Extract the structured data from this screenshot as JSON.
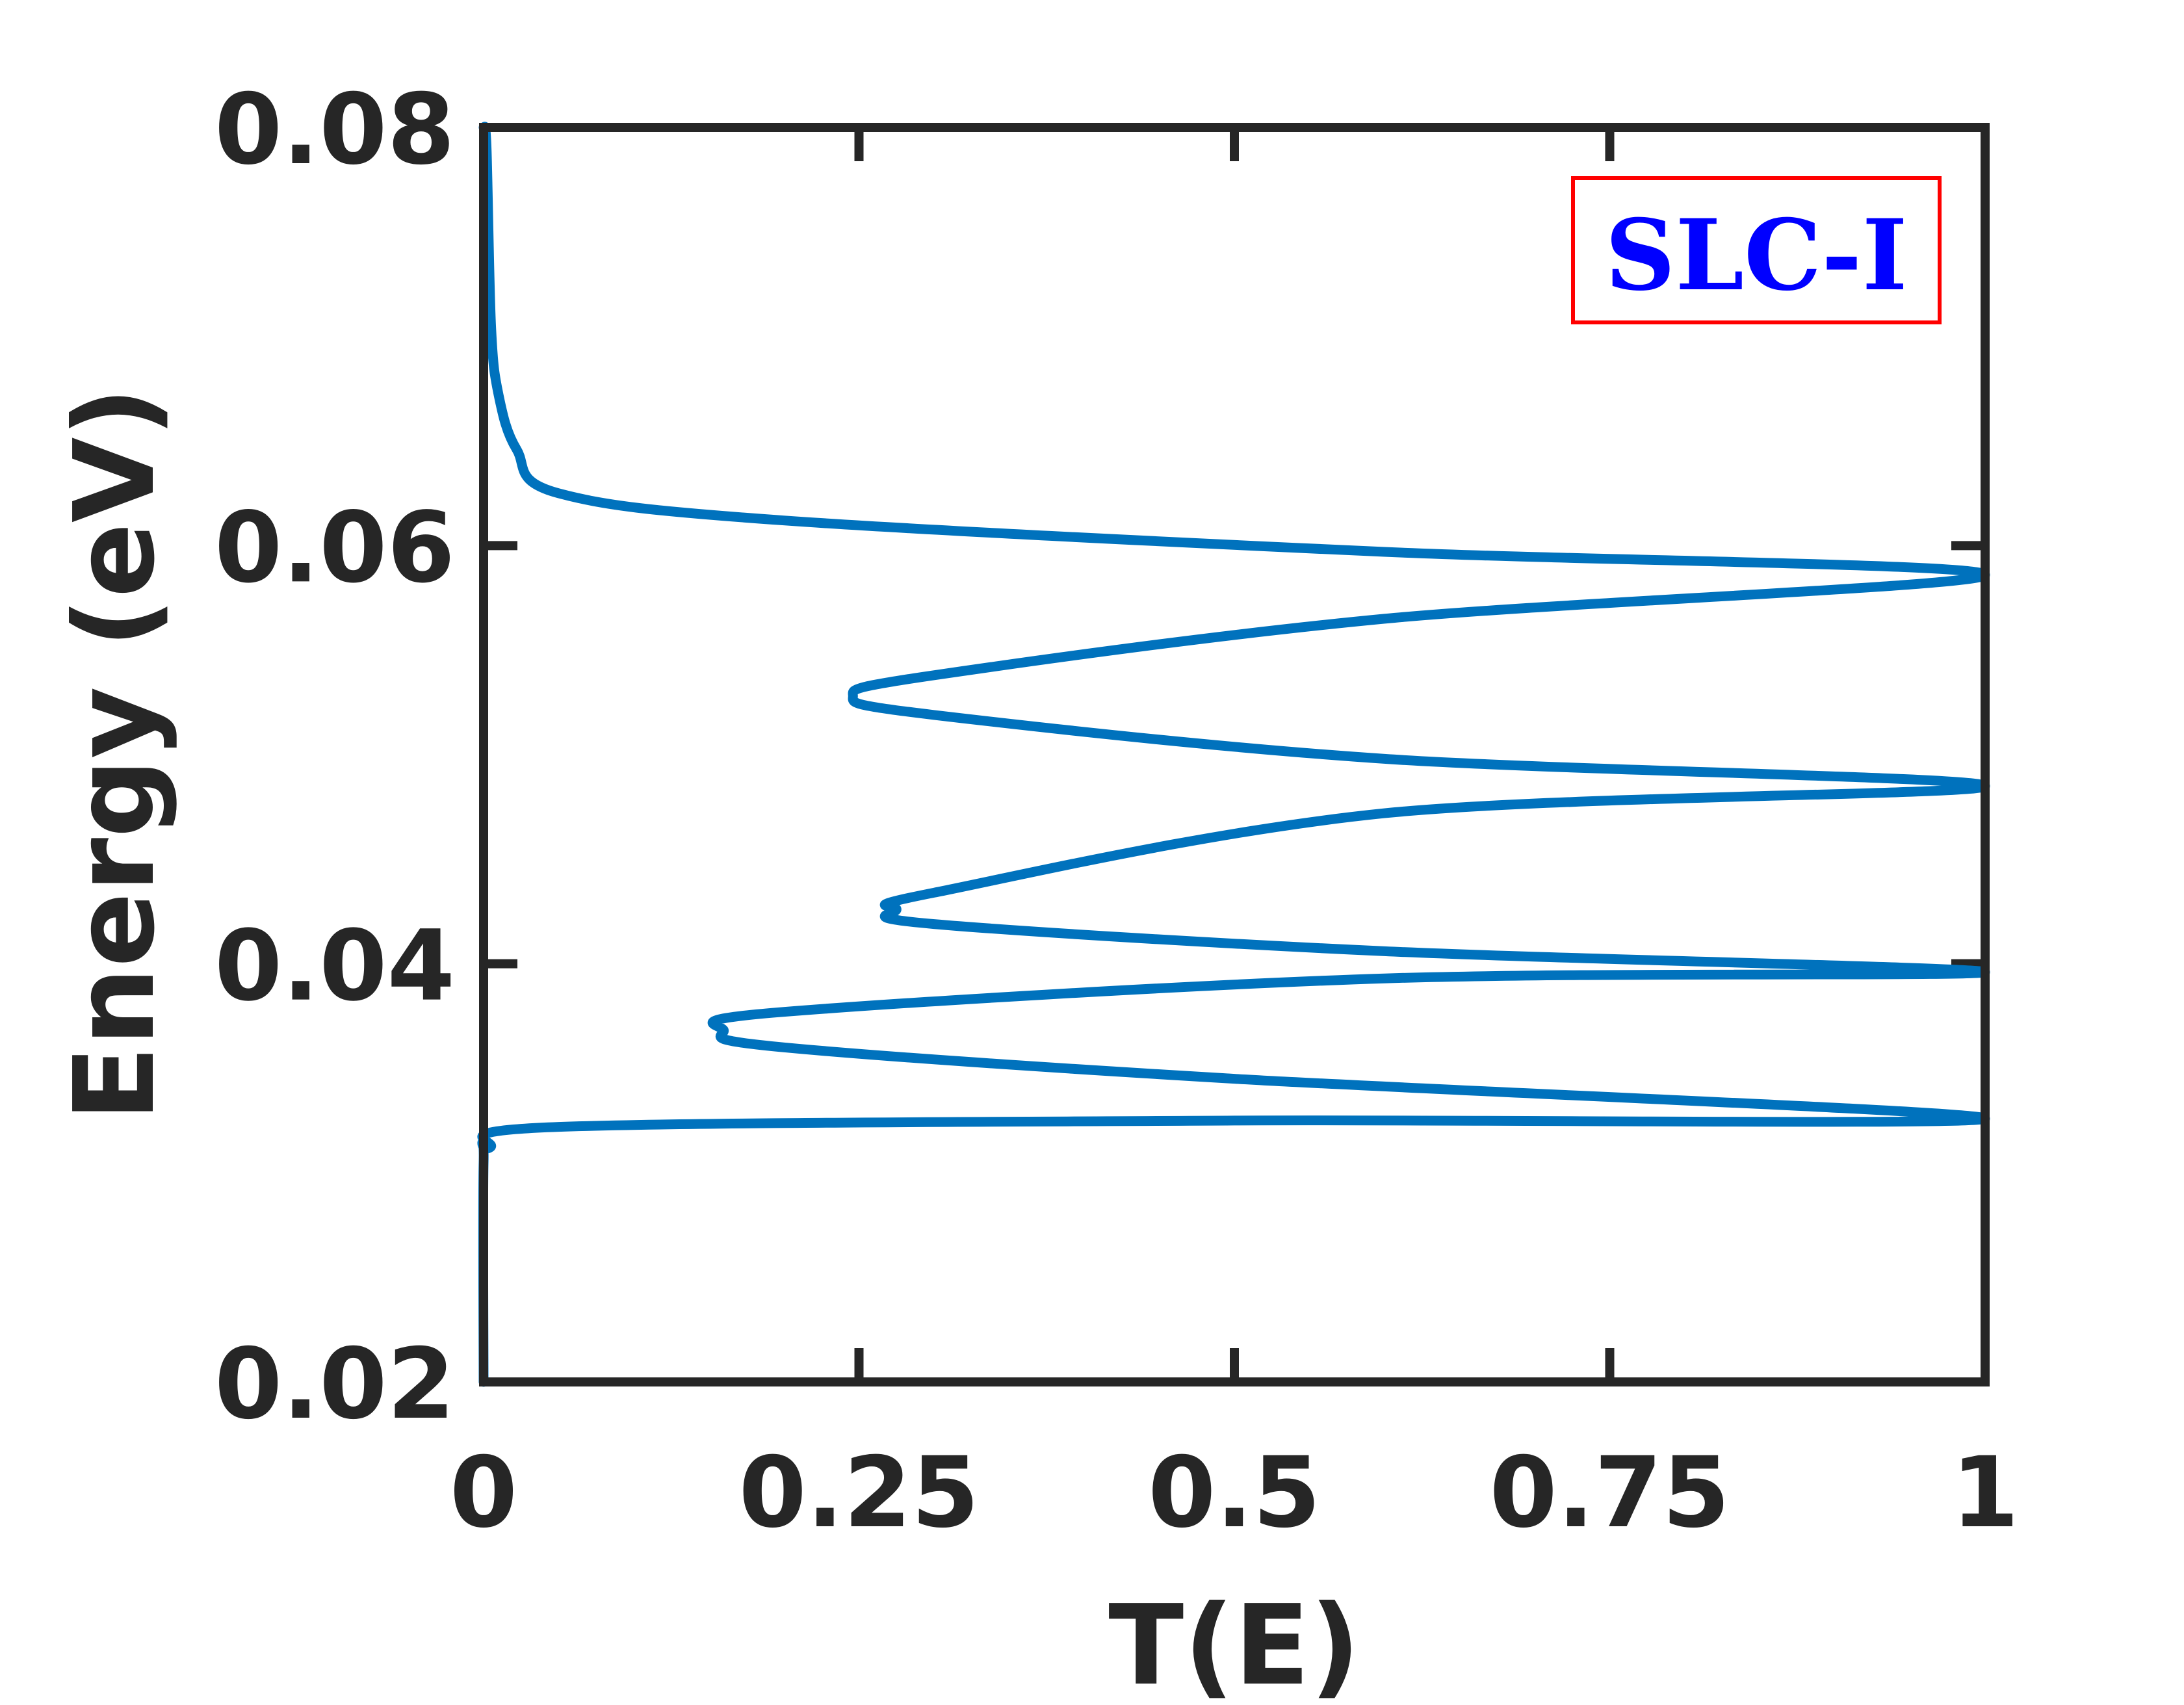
{
  "chart_data": {
    "type": "line",
    "title": "",
    "xlabel": "T(E)",
    "ylabel": "Energy (eV)",
    "xlim": [
      0,
      1
    ],
    "ylim": [
      0.02,
      0.08
    ],
    "xticks": [
      "0",
      "0.25",
      "0.5",
      "0.75",
      "1"
    ],
    "yticks": [
      "0.02",
      "0.04",
      "0.06",
      "0.08"
    ],
    "grid": false,
    "annotation": {
      "text": "SLC-I",
      "text_color": "#0000ff",
      "border_color": "#ff0000",
      "position": "top-right"
    },
    "series": [
      {
        "color": "#0072bd",
        "points": [
          {
            "x": 0.0,
            "y": 0.02
          },
          {
            "x": 0.0,
            "y": 0.0305
          },
          {
            "x": 0.004,
            "y": 0.0312
          },
          {
            "x": 0.05,
            "y": 0.0322
          },
          {
            "x": 0.5,
            "y": 0.0325
          },
          {
            "x": 1.0,
            "y": 0.0326
          },
          {
            "x": 0.5,
            "y": 0.0345
          },
          {
            "x": 0.2,
            "y": 0.036
          },
          {
            "x": 0.16,
            "y": 0.0368
          },
          {
            "x": 0.2,
            "y": 0.0377
          },
          {
            "x": 0.6,
            "y": 0.0393
          },
          {
            "x": 1.0,
            "y": 0.0396
          },
          {
            "x": 0.6,
            "y": 0.0406
          },
          {
            "x": 0.3,
            "y": 0.0419
          },
          {
            "x": 0.275,
            "y": 0.0426
          },
          {
            "x": 0.3,
            "y": 0.0434
          },
          {
            "x": 0.6,
            "y": 0.0472
          },
          {
            "x": 1.0,
            "y": 0.0485
          },
          {
            "x": 0.6,
            "y": 0.0498
          },
          {
            "x": 0.3,
            "y": 0.0519
          },
          {
            "x": 0.246,
            "y": 0.0528
          },
          {
            "x": 0.3,
            "y": 0.0538
          },
          {
            "x": 0.6,
            "y": 0.0565
          },
          {
            "x": 1.0,
            "y": 0.0586
          },
          {
            "x": 0.6,
            "y": 0.0597
          },
          {
            "x": 0.2,
            "y": 0.0612
          },
          {
            "x": 0.05,
            "y": 0.0625
          },
          {
            "x": 0.022,
            "y": 0.0646
          },
          {
            "x": 0.01,
            "y": 0.0672
          },
          {
            "x": 0.005,
            "y": 0.0705
          },
          {
            "x": 0.002,
            "y": 0.079
          },
          {
            "x": 0.0,
            "y": 0.08
          }
        ]
      }
    ]
  }
}
